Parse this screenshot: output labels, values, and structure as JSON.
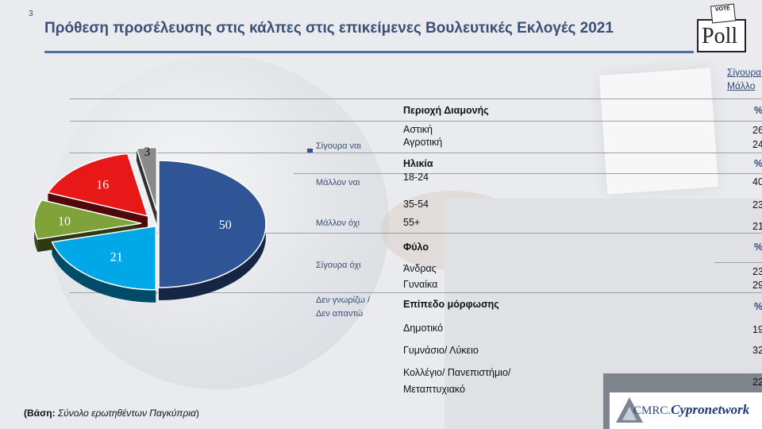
{
  "slide_number": "3",
  "title": "Πρόθεση προσέλευσης στις κάλπες στις επικείμενες Βουλευτικές Εκλογές 2021",
  "logo_poll": {
    "vote": "VOTE",
    "word": "Poll"
  },
  "legend": [
    {
      "label": "Σίγουρα ναι",
      "color": "#2f5597"
    },
    {
      "label": "Μάλλον ναι",
      "color": "#00a8e8"
    },
    {
      "label": "Μάλλον όχι",
      "color": "#7fa33a"
    },
    {
      "label": "Σίγουρα όχι",
      "color": "#e81818"
    },
    {
      "label": "Δεν γνωρίζω /",
      "label2": "Δεν απαντώ",
      "color": "#8a8a8a"
    }
  ],
  "column_header": {
    "line1": "Σίγουρα",
    "line2": "Μάλλο"
  },
  "segments": {
    "residence": {
      "heading": "Περιοχή Διαμονής",
      "pct": "%",
      "rows": [
        {
          "label": "Αστική",
          "value": "26"
        },
        {
          "label": "Αγροτική",
          "value": "24"
        }
      ]
    },
    "age": {
      "heading": "Ηλικία",
      "pct": "%",
      "rows": [
        {
          "label": "18-24",
          "value": "40"
        },
        {
          "label": "35-54",
          "value": "23"
        },
        {
          "label": "55+",
          "value": "21"
        }
      ]
    },
    "gender": {
      "heading": "Φύλο",
      "pct": "%",
      "rows": [
        {
          "label": "Άνδρας",
          "value": "23"
        },
        {
          "label": "Γυναίκα",
          "value": "29"
        }
      ]
    },
    "education": {
      "heading": "Επίπεδο μόρφωσης",
      "pct": "%",
      "rows": [
        {
          "label": "Δημοτικό",
          "value": "19"
        },
        {
          "label": "Γυμνάσιο/ Λύκειο",
          "value": "32"
        },
        {
          "label": "Κολλέγιο/ Πανεπιστήμιο/",
          "label2": "Μεταπτυχιακό",
          "value": "22"
        }
      ]
    }
  },
  "base_note": {
    "bold": "(Βάση:",
    "italic": "Σύνολο ερωτηθέντων Παγκύπρια",
    "end": ")"
  },
  "cmrc_logo": {
    "prefix": "CMRC.",
    "brand": "Cypronetwork"
  },
  "chart_data": {
    "type": "pie",
    "title": "",
    "categories": [
      "Σίγουρα ναι",
      "Μάλλον ναι",
      "Μάλλον όχι",
      "Σίγουρα όχι",
      "Δεν γνωρίζω / Δεν απαντώ"
    ],
    "values": [
      50,
      21,
      10,
      16,
      3
    ],
    "colors": [
      "#2f5597",
      "#00a8e8",
      "#7fa33a",
      "#e81818",
      "#8a8a8a"
    ],
    "data_labels": [
      "50",
      "21",
      "10",
      "16",
      "3"
    ]
  }
}
